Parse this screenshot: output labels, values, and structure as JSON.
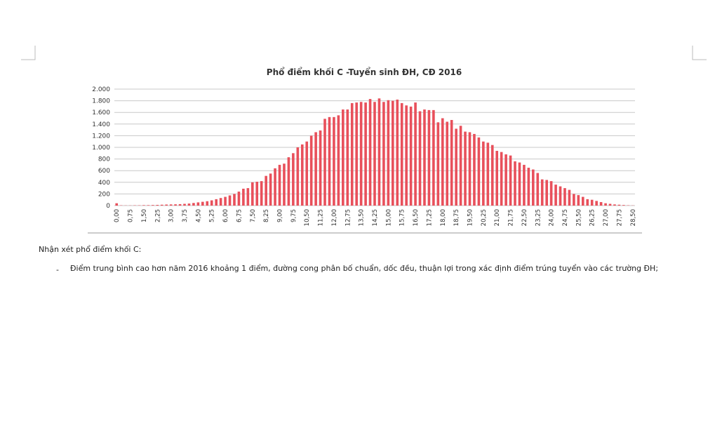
{
  "chart_data": {
    "type": "bar",
    "title": "Phổ điểm khối C -Tuyển sinh ĐH, CĐ 2016",
    "categories": [
      "0,00",
      null,
      null,
      "0,75",
      null,
      null,
      "1,50",
      null,
      null,
      "2,25",
      null,
      null,
      "3,00",
      null,
      null,
      "3,75",
      null,
      null,
      "4,50",
      null,
      null,
      "5,25",
      null,
      null,
      "6,00",
      null,
      null,
      "6,75",
      null,
      null,
      "7,50",
      null,
      null,
      "8,25",
      null,
      null,
      "9,00",
      null,
      null,
      "9,75",
      null,
      null,
      "10,50",
      null,
      null,
      "11,25",
      null,
      null,
      "12,00",
      null,
      null,
      "12,75",
      null,
      null,
      "13,50",
      null,
      null,
      "14,25",
      null,
      null,
      "15,00",
      null,
      null,
      "15,75",
      null,
      null,
      "16,50",
      null,
      null,
      "17,25",
      null,
      null,
      "18,00",
      null,
      null,
      "18,75",
      null,
      null,
      "19,50",
      null,
      null,
      "20,25",
      null,
      null,
      "21,00",
      null,
      null,
      "21,75",
      null,
      null,
      "22,50",
      null,
      null,
      "23,25",
      null,
      null,
      "24,00",
      null,
      null,
      "24,75",
      null,
      null,
      "25,50",
      null,
      null,
      "26,25",
      null,
      null,
      "27,00",
      null,
      null,
      "27,75",
      null,
      null,
      "28,50"
    ],
    "values": [
      40,
      5,
      3,
      3,
      5,
      5,
      8,
      8,
      10,
      12,
      15,
      18,
      20,
      22,
      25,
      30,
      35,
      45,
      55,
      65,
      75,
      90,
      110,
      130,
      150,
      175,
      200,
      240,
      290,
      300,
      400,
      410,
      420,
      510,
      550,
      640,
      700,
      720,
      830,
      900,
      1000,
      1050,
      1100,
      1200,
      1260,
      1290,
      1490,
      1520,
      1520,
      1550,
      1650,
      1650,
      1760,
      1770,
      1780,
      1770,
      1830,
      1780,
      1840,
      1780,
      1810,
      1800,
      1820,
      1760,
      1720,
      1700,
      1770,
      1620,
      1650,
      1640,
      1640,
      1430,
      1500,
      1440,
      1470,
      1320,
      1370,
      1270,
      1260,
      1230,
      1170,
      1100,
      1080,
      1040,
      940,
      920,
      880,
      860,
      760,
      740,
      700,
      650,
      620,
      560,
      450,
      440,
      420,
      360,
      330,
      300,
      270,
      200,
      180,
      150,
      110,
      100,
      80,
      60,
      40,
      30,
      20,
      15,
      10,
      5,
      3
    ],
    "color": "#e8505b",
    "ylim": [
      0,
      2000
    ],
    "yticks": [
      0,
      200,
      400,
      600,
      800,
      {
        "value": 1000,
        "label": "1.000"
      },
      {
        "value": 1200,
        "label": "1.200"
      },
      {
        "value": 1400,
        "label": "1.400"
      },
      {
        "value": 1600,
        "label": "1.600"
      },
      {
        "value": 1800,
        "label": "1.800"
      },
      {
        "value": 2000,
        "label": "2.000"
      }
    ],
    "grid": true
  },
  "document": {
    "heading": "Nhận xét phổ điểm khối C:",
    "bullets": [
      {
        "marker": "-",
        "text": "Điểm trung bình cao hơn năm 2016 khoảng 1 điểm, đường cong phân bố chuẩn, dốc đều, thuận lợi trong xác định điểm trúng tuyển vào các trường ĐH;"
      }
    ]
  }
}
